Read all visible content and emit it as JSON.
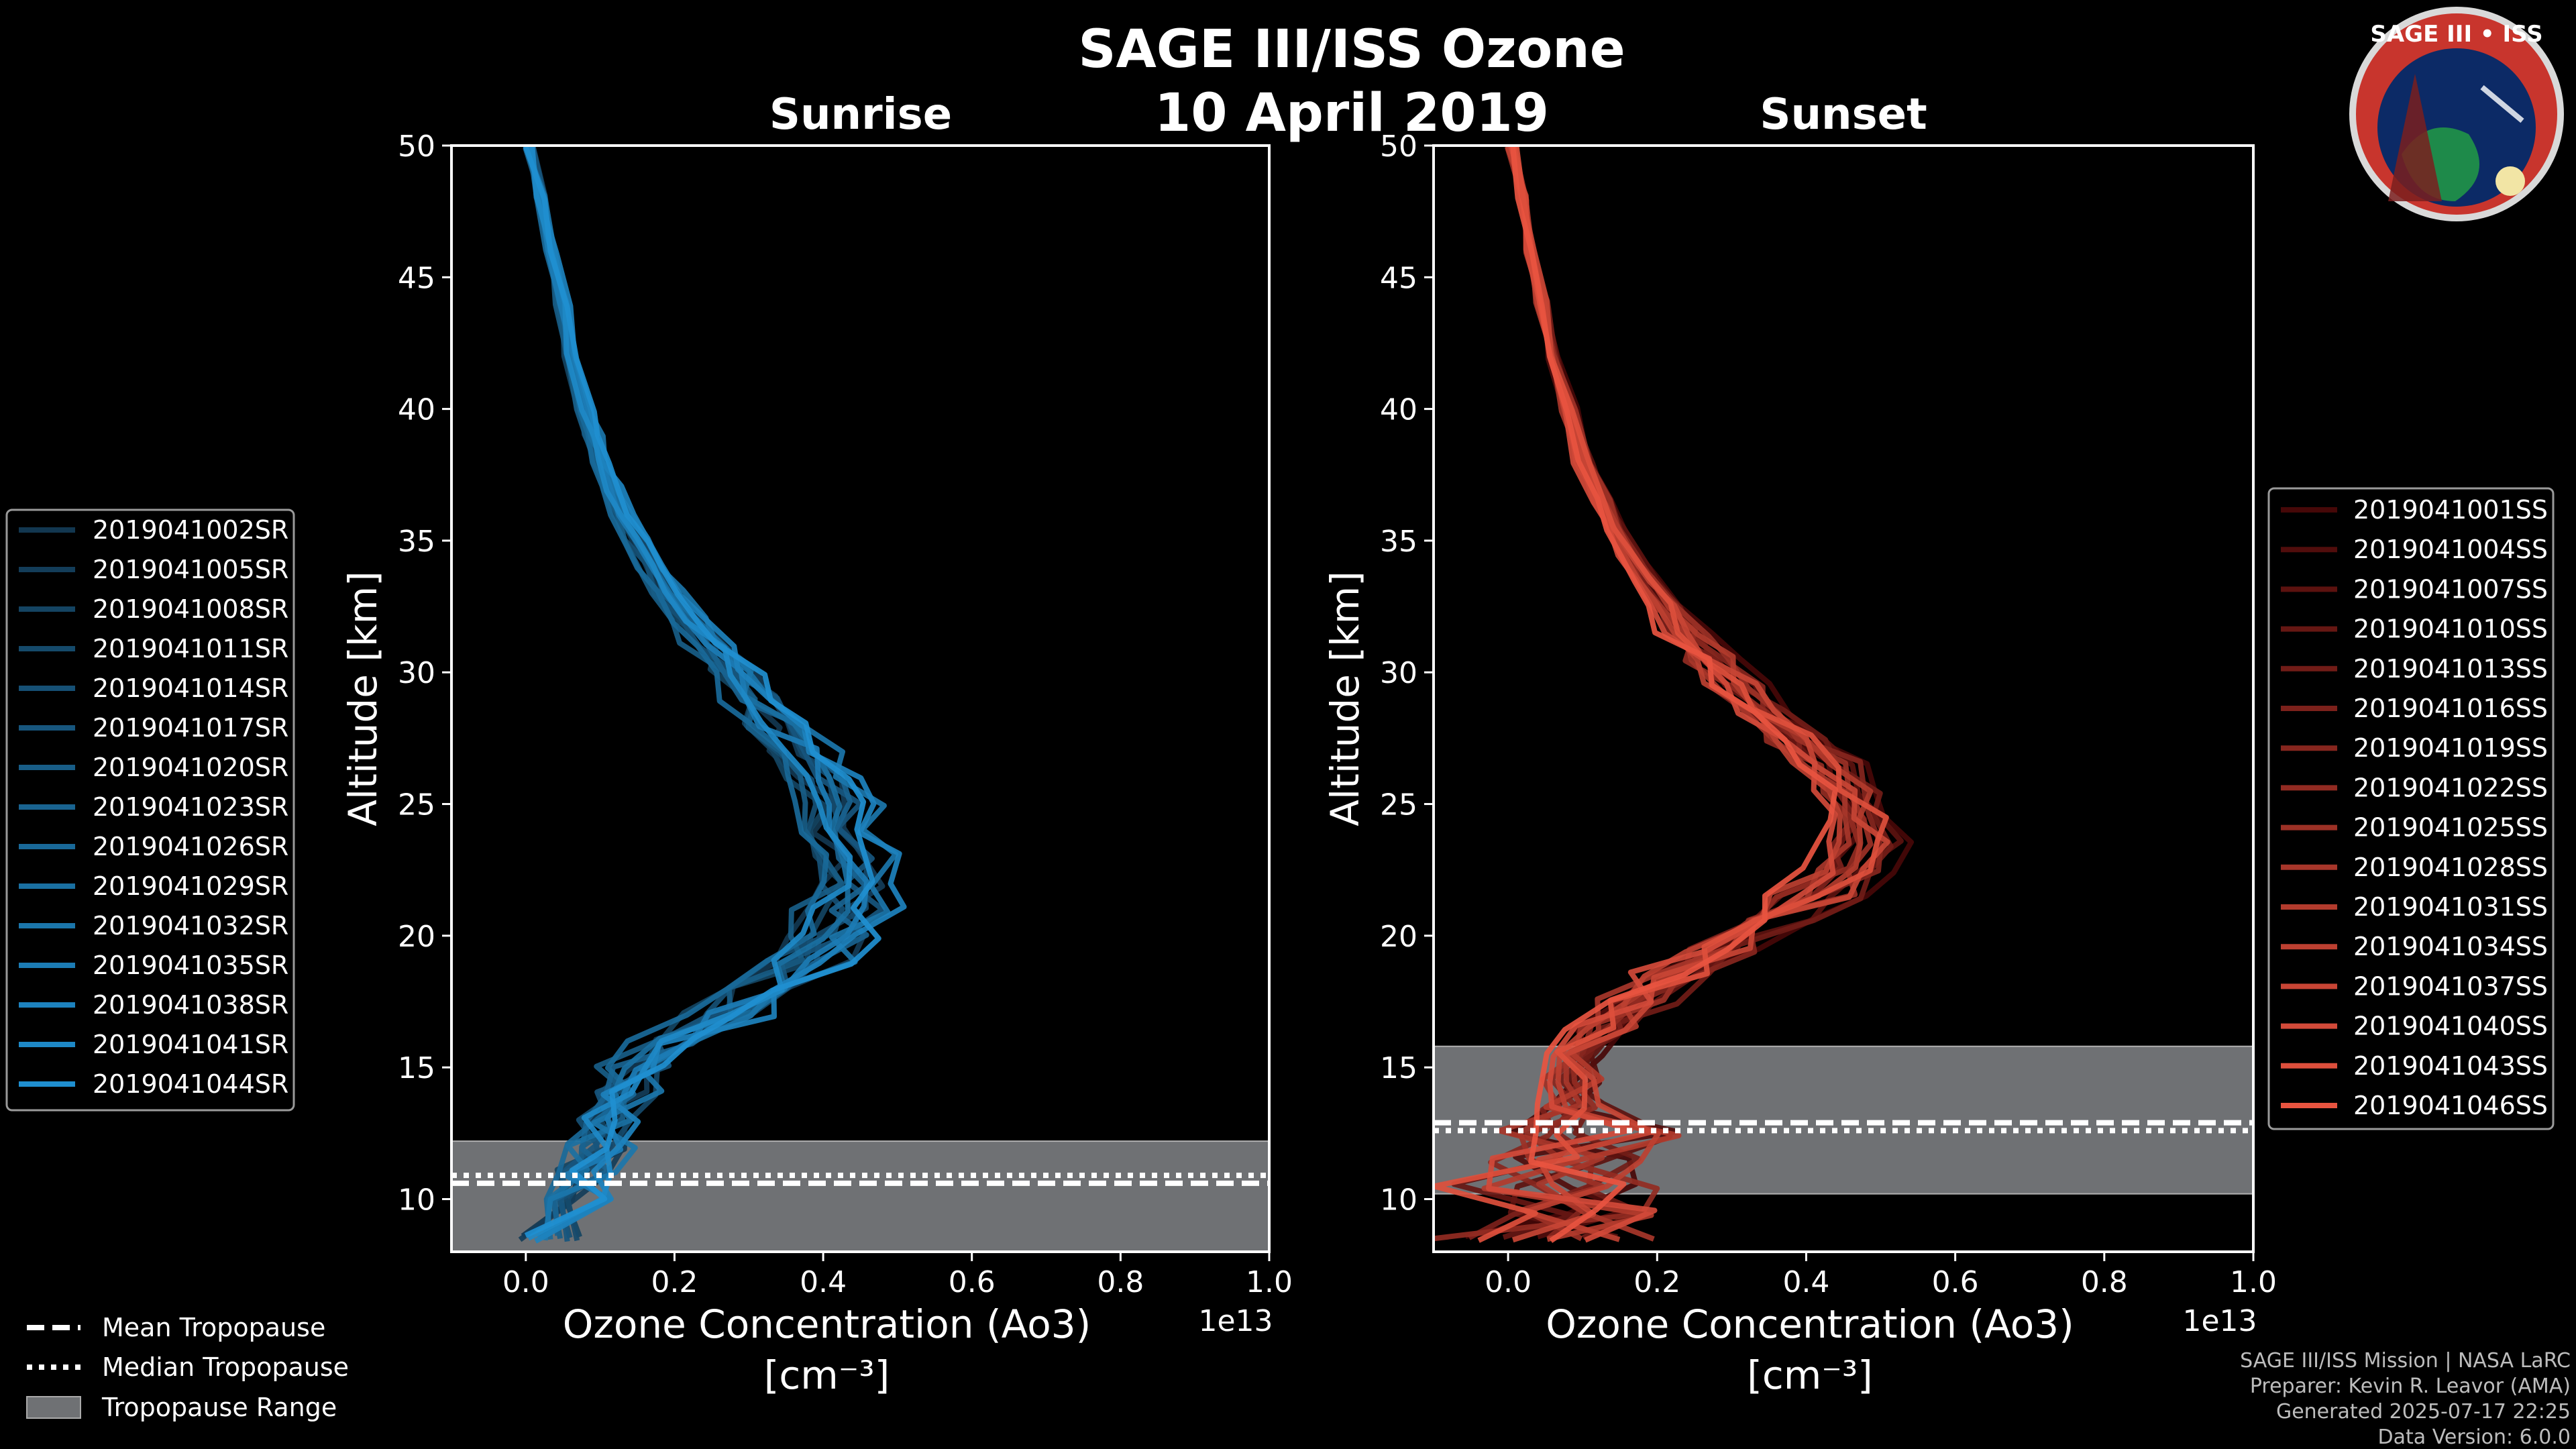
{
  "figure": {
    "title_line1": "SAGE III/ISS Ozone",
    "title_line2": "10 April 2019",
    "badge_text": "SAGE III • ISS",
    "credits": [
      "SAGE III/ISS Mission | NASA LaRC",
      "Preparer: Kevin R. Leavor (AMA)",
      "Generated 2025-07-17 22:25",
      "Data Version: 6.0.0"
    ],
    "tropo_legend": {
      "mean": "Mean Tropopause",
      "median": "Median Tropopause",
      "range": "Tropopause Range"
    }
  },
  "chart_data": [
    {
      "type": "line",
      "title": "Sunrise",
      "xlabel": "Ozone Concentration (Ao3)",
      "xlabel_unit": "[cm⁻³]",
      "x_scale_label": "1e13",
      "ylabel": "Altitude [km]",
      "xlim": [
        -0.1,
        1.0
      ],
      "ylim": [
        8,
        50
      ],
      "xticks": [
        "0.0",
        "0.2",
        "0.4",
        "0.6",
        "0.8",
        "1.0"
      ],
      "yticks": [
        "10",
        "15",
        "20",
        "25",
        "30",
        "35",
        "40",
        "45",
        "50"
      ],
      "color": "#1f8fd0",
      "altitude_km": [
        8.5,
        10,
        11,
        12,
        13,
        14,
        15,
        16,
        17,
        18,
        19,
        20,
        21,
        22,
        23,
        24,
        25,
        26,
        27,
        28,
        29,
        30,
        31,
        32,
        33,
        34,
        35,
        36,
        37,
        38,
        39,
        40,
        42,
        44,
        46,
        48,
        50
      ],
      "ozone_profile_mean": [
        0.03,
        0.07,
        0.08,
        0.1,
        0.12,
        0.13,
        0.15,
        0.2,
        0.27,
        0.33,
        0.38,
        0.41,
        0.43,
        0.44,
        0.44,
        0.43,
        0.42,
        0.4,
        0.37,
        0.34,
        0.31,
        0.28,
        0.25,
        0.22,
        0.19,
        0.17,
        0.15,
        0.13,
        0.115,
        0.1,
        0.09,
        0.08,
        0.06,
        0.05,
        0.035,
        0.02,
        0.005
      ],
      "series_names": [
        "2019041002SR",
        "2019041005SR",
        "2019041008SR",
        "2019041011SR",
        "2019041014SR",
        "2019041017SR",
        "2019041020SR",
        "2019041023SR",
        "2019041026SR",
        "2019041029SR",
        "2019041032SR",
        "2019041035SR",
        "2019041038SR",
        "2019041041SR",
        "2019041044SR"
      ],
      "tropopause": {
        "mean": 10.6,
        "median": 10.9,
        "range": [
          8,
          12.2
        ]
      }
    },
    {
      "type": "line",
      "title": "Sunset",
      "xlabel": "Ozone Concentration (Ao3)",
      "xlabel_unit": "[cm⁻³]",
      "x_scale_label": "1e13",
      "ylabel": "Altitude [km]",
      "xlim": [
        -0.1,
        1.0
      ],
      "ylim": [
        8,
        50
      ],
      "xticks": [
        "0.0",
        "0.2",
        "0.4",
        "0.6",
        "0.8",
        "1.0"
      ],
      "yticks": [
        "10",
        "15",
        "20",
        "25",
        "30",
        "35",
        "40",
        "45",
        "50"
      ],
      "color": "#e85440",
      "altitude_km": [
        8.5,
        9.5,
        10.5,
        11.5,
        12.5,
        13.5,
        14.5,
        15.5,
        16.5,
        17.5,
        18.5,
        19.5,
        20.5,
        21.5,
        22.5,
        23.5,
        24.5,
        25.5,
        26.5,
        27.5,
        28.5,
        29.5,
        30.5,
        31.5,
        32.5,
        33.5,
        34.5,
        35.5,
        36.5,
        38,
        40,
        42,
        44,
        46,
        48,
        50
      ],
      "ozone_profile_mean": [
        0.05,
        0.04,
        0.06,
        0.08,
        0.09,
        0.08,
        0.08,
        0.1,
        0.13,
        0.17,
        0.22,
        0.28,
        0.34,
        0.4,
        0.45,
        0.47,
        0.47,
        0.45,
        0.42,
        0.38,
        0.34,
        0.3,
        0.27,
        0.24,
        0.21,
        0.18,
        0.16,
        0.14,
        0.125,
        0.1,
        0.08,
        0.06,
        0.045,
        0.03,
        0.02,
        0.005
      ],
      "series_names": [
        "2019041001SS",
        "2019041004SS",
        "2019041007SS",
        "2019041010SS",
        "2019041013SS",
        "2019041016SS",
        "2019041019SS",
        "2019041022SS",
        "2019041025SS",
        "2019041028SS",
        "2019041031SS",
        "2019041034SS",
        "2019041037SS",
        "2019041040SS",
        "2019041043SS",
        "2019041046SS"
      ],
      "tropopause": {
        "mean": 12.9,
        "median": 12.6,
        "range": [
          10.2,
          15.8
        ]
      }
    }
  ]
}
